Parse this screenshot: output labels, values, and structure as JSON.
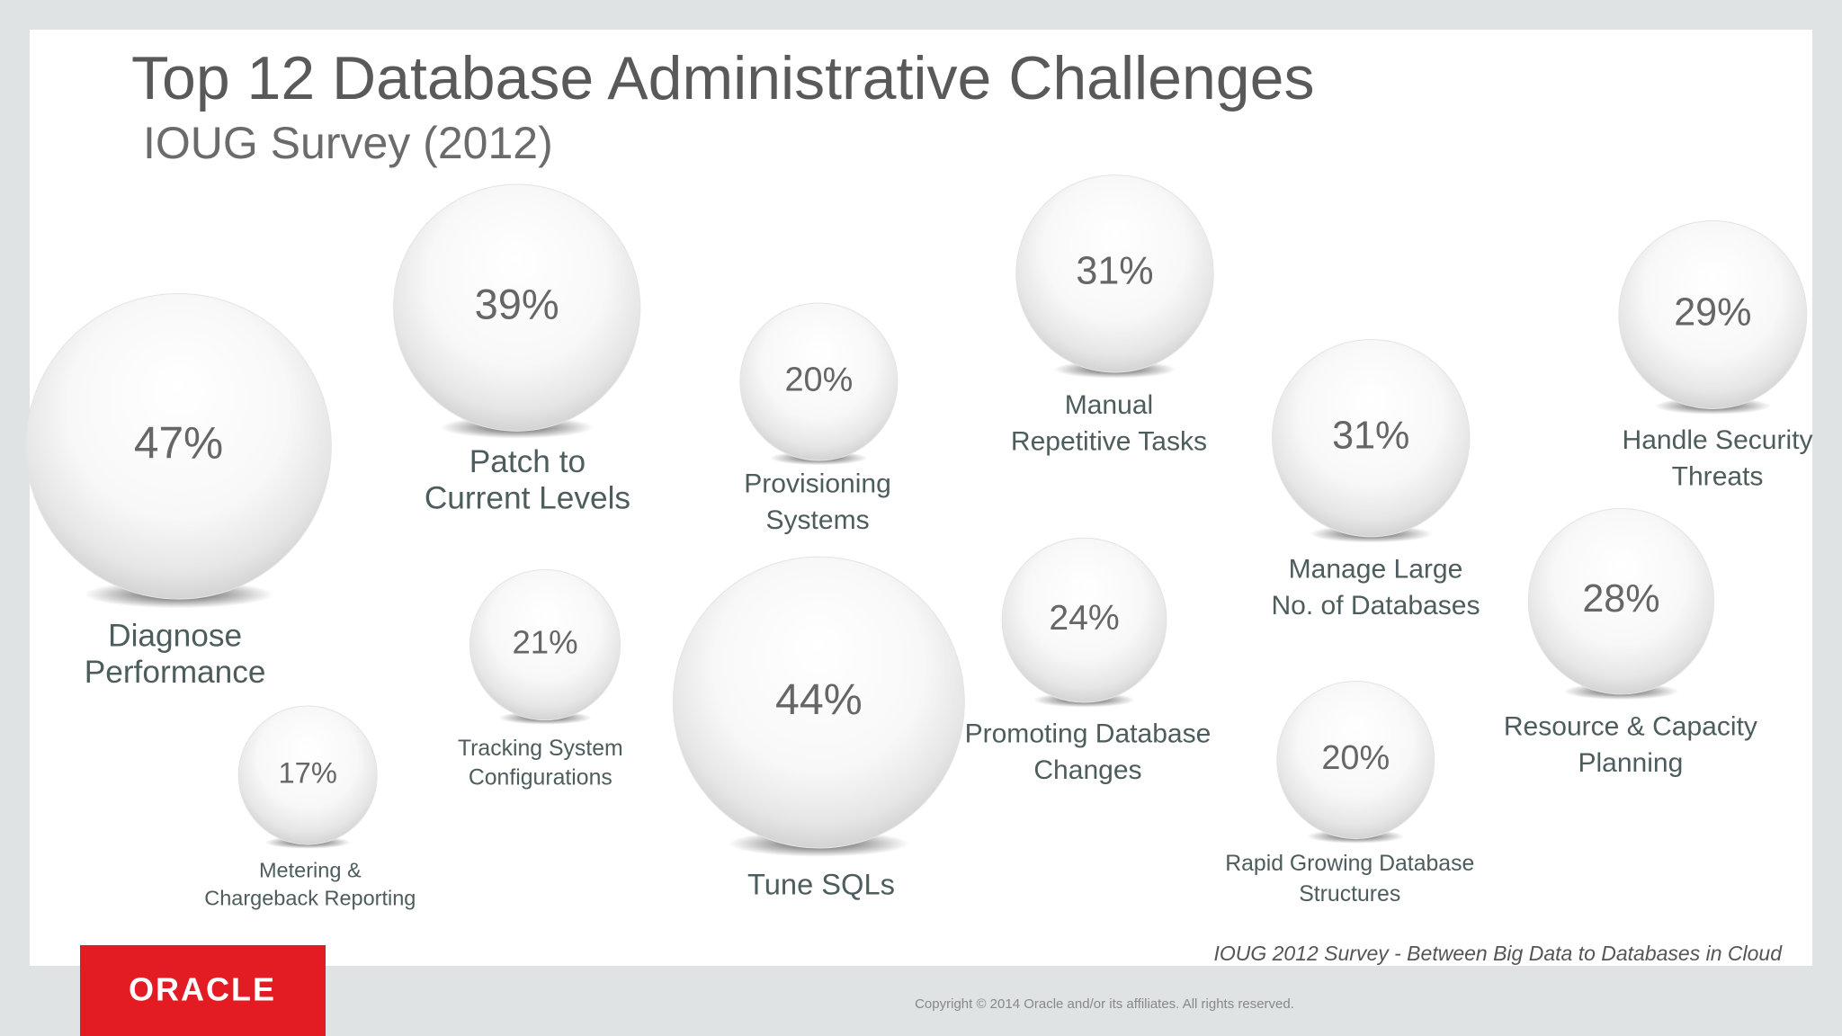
{
  "header": {
    "title": "Top 12 Database Administrative Challenges",
    "subtitle": "IOUG Survey (2012)"
  },
  "items": [
    {
      "value": "47%",
      "label": [
        "Diagnose",
        "Performance"
      ]
    },
    {
      "value": "39%",
      "label": [
        "Patch  to",
        "Current Levels"
      ]
    },
    {
      "value": "20%",
      "label": [
        "Provisioning",
        "Systems"
      ]
    },
    {
      "value": "31%",
      "label": [
        "Manual",
        "Repetitive Tasks"
      ]
    },
    {
      "value": "31%",
      "label": [
        "Manage Large",
        "No. of Databases"
      ]
    },
    {
      "value": "29%",
      "label": [
        "Handle Security",
        "Threats"
      ]
    },
    {
      "value": "21%",
      "label": [
        "Tracking System",
        "Configurations"
      ]
    },
    {
      "value": "44%",
      "label": [
        "Tune SQLs"
      ]
    },
    {
      "value": "24%",
      "label": [
        "Promoting Database",
        "Changes"
      ]
    },
    {
      "value": "20%",
      "label": [
        "Rapid Growing Database",
        "Structures"
      ]
    },
    {
      "value": "28%",
      "label": [
        "Resource & Capacity",
        "Planning"
      ]
    },
    {
      "value": "17%",
      "label": [
        "Metering &",
        "Chargeback Reporting"
      ]
    }
  ],
  "footer": {
    "source": "IOUG 2012 Survey -   Between Big Data to Databases in Cloud",
    "logo": "ORACLE",
    "copyright": "Copyright © 2014 Oracle and/or its affiliates. All rights reserved."
  }
}
